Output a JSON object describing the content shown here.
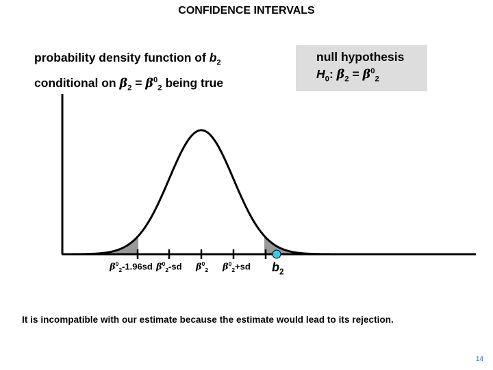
{
  "title": "CONFIDENCE INTERVALS",
  "pdf_label": {
    "line1_text": "probability density function of ",
    "line1_var": "b",
    "line1_sub": "2",
    "line2_pre": "conditional on ",
    "beta": "β",
    "sub2": "2",
    "equals": " = ",
    "sup_null": "0",
    "line2_post": " being true"
  },
  "hypothesis": {
    "heading": "null hypothesis",
    "h": "H",
    "h_sub": "0",
    "colon": ": ",
    "beta": "β",
    "sub2": "2",
    "equals": " = ",
    "sup_null": "0"
  },
  "ticks": {
    "t1_suffix": "-1.96sd",
    "t2_suffix": "-sd",
    "t4_suffix": "+sd"
  },
  "estimate_label": {
    "var": "b",
    "sub": "2"
  },
  "caption": "It is incompatible with our estimate because the estimate would lead to its rejection.",
  "page_number": "14",
  "colors": {
    "tail_fill": "#999999",
    "estimate_marker": "#33ccee",
    "hyp_box": "#dddddd"
  }
}
